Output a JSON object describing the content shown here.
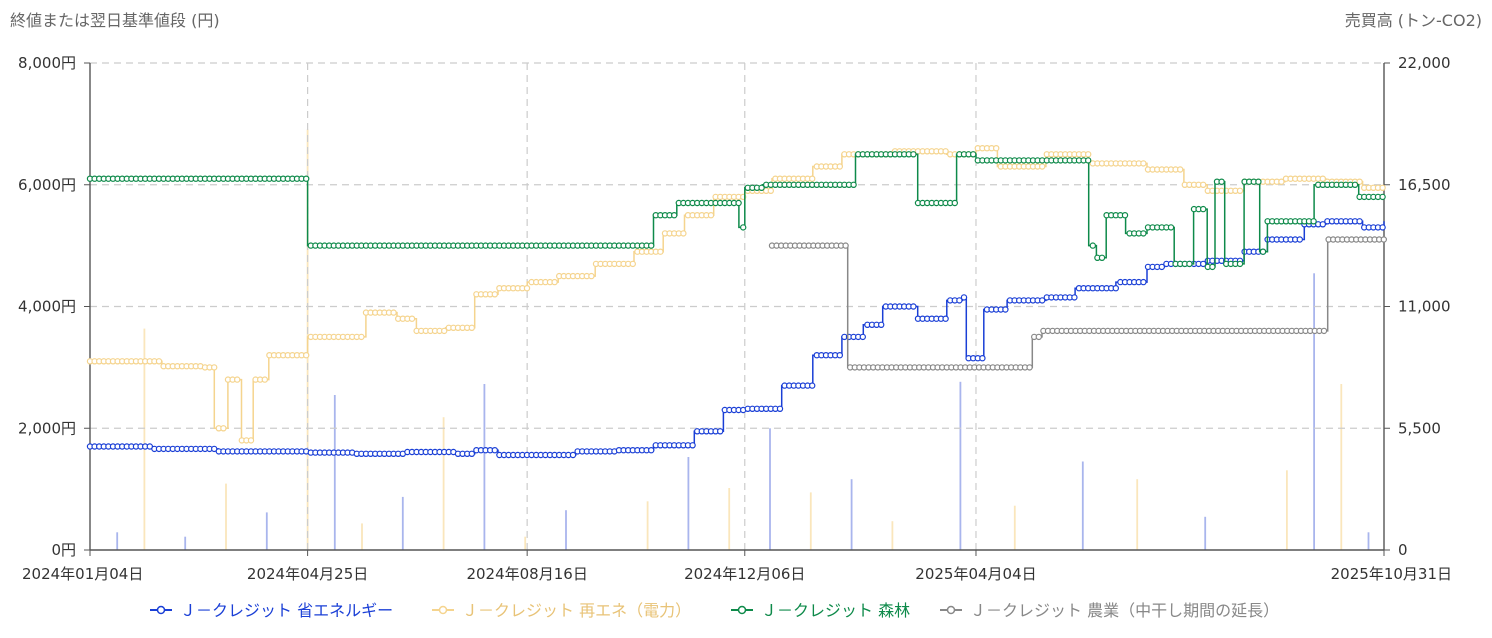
{
  "chart_data": {
    "type": "line",
    "y_left_title": "終値または翌日基準値段 (円)",
    "y_right_title": "売買高 (トン-CO2)",
    "y_left_ticks": [
      "0円",
      "2,000円",
      "4,000円",
      "6,000円",
      "8,000円"
    ],
    "y_right_ticks": [
      "0",
      "5,500",
      "11,000",
      "16,500",
      "22,000"
    ],
    "ylim_left": [
      0,
      8000
    ],
    "ylim_right": [
      0,
      22000
    ],
    "x_tick_labels": [
      "2024年01月04日",
      "2024年04月25日",
      "2024年08月16日",
      "2024年12月06日",
      "2025年04月04日",
      "2025年10月31日"
    ],
    "x_range": [
      "2024-01-04",
      "2025-10-31"
    ],
    "grid": true,
    "legend_position": "bottom",
    "series": [
      {
        "name": "Ｊ－クレジット 省エネルギー",
        "color": "#1a3fd6",
        "points": [
          [
            "2024-01-04",
            1700
          ],
          [
            "2024-02-05",
            1660
          ],
          [
            "2024-03-10",
            1620
          ],
          [
            "2024-04-25",
            1600
          ],
          [
            "2024-05-20",
            1580
          ],
          [
            "2024-06-15",
            1610
          ],
          [
            "2024-07-10",
            1580
          ],
          [
            "2024-07-20",
            1640
          ],
          [
            "2024-08-01",
            1560
          ],
          [
            "2024-08-16",
            1560
          ],
          [
            "2024-09-10",
            1620
          ],
          [
            "2024-10-01",
            1640
          ],
          [
            "2024-10-20",
            1720
          ],
          [
            "2024-11-10",
            1950
          ],
          [
            "2024-11-25",
            2300
          ],
          [
            "2024-12-06",
            2320
          ],
          [
            "2024-12-25",
            2700
          ],
          [
            "2025-01-10",
            3200
          ],
          [
            "2025-01-25",
            3500
          ],
          [
            "2025-02-05",
            3700
          ],
          [
            "2025-02-15",
            4000
          ],
          [
            "2025-03-05",
            3800
          ],
          [
            "2025-03-20",
            4100
          ],
          [
            "2025-03-28",
            4150
          ],
          [
            "2025-03-30",
            3150
          ],
          [
            "2025-04-04",
            3150
          ],
          [
            "2025-04-08",
            3950
          ],
          [
            "2025-04-20",
            4100
          ],
          [
            "2025-05-10",
            4150
          ],
          [
            "2025-05-25",
            4300
          ],
          [
            "2025-06-15",
            4400
          ],
          [
            "2025-07-01",
            4650
          ],
          [
            "2025-07-10",
            4700
          ],
          [
            "2025-08-01",
            4750
          ],
          [
            "2025-08-20",
            4900
          ],
          [
            "2025-09-01",
            5100
          ],
          [
            "2025-09-20",
            5350
          ],
          [
            "2025-10-01",
            5400
          ],
          [
            "2025-10-20",
            5300
          ],
          [
            "2025-10-31",
            5400
          ]
        ]
      },
      {
        "name": "Ｊ－クレジット 再エネ（電力）",
        "color": "#f5d48e",
        "points": [
          [
            "2024-01-04",
            3100
          ],
          [
            "2024-02-10",
            3020
          ],
          [
            "2024-03-01",
            3000
          ],
          [
            "2024-03-08",
            2000
          ],
          [
            "2024-03-15",
            2800
          ],
          [
            "2024-03-22",
            1800
          ],
          [
            "2024-03-28",
            2800
          ],
          [
            "2024-04-05",
            3200
          ],
          [
            "2024-04-25",
            3500
          ],
          [
            "2024-05-15",
            3500
          ],
          [
            "2024-05-25",
            3900
          ],
          [
            "2024-06-10",
            3800
          ],
          [
            "2024-06-20",
            3600
          ],
          [
            "2024-07-05",
            3650
          ],
          [
            "2024-07-20",
            4200
          ],
          [
            "2024-08-01",
            4300
          ],
          [
            "2024-08-16",
            4400
          ],
          [
            "2024-09-01",
            4500
          ],
          [
            "2024-09-20",
            4700
          ],
          [
            "2024-10-10",
            4900
          ],
          [
            "2024-10-25",
            5200
          ],
          [
            "2024-11-05",
            5500
          ],
          [
            "2024-11-20",
            5800
          ],
          [
            "2024-12-06",
            5900
          ],
          [
            "2024-12-20",
            6100
          ],
          [
            "2025-01-10",
            6300
          ],
          [
            "2025-01-25",
            6500
          ],
          [
            "2025-02-20",
            6550
          ],
          [
            "2025-03-20",
            6500
          ],
          [
            "2025-04-04",
            6600
          ],
          [
            "2025-04-15",
            6300
          ],
          [
            "2025-05-10",
            6500
          ],
          [
            "2025-06-01",
            6350
          ],
          [
            "2025-07-01",
            6250
          ],
          [
            "2025-07-20",
            6000
          ],
          [
            "2025-08-01",
            5900
          ],
          [
            "2025-08-20",
            6050
          ],
          [
            "2025-09-10",
            6100
          ],
          [
            "2025-10-01",
            6050
          ],
          [
            "2025-10-20",
            5950
          ],
          [
            "2025-10-31",
            5950
          ]
        ]
      },
      {
        "name": "Ｊ－クレジット 森林",
        "color": "#0e8a4a",
        "points": [
          [
            "2024-01-04",
            6100
          ],
          [
            "2024-04-24",
            6100
          ],
          [
            "2024-04-25",
            5000
          ],
          [
            "2024-10-15",
            5000
          ],
          [
            "2024-10-20",
            5500
          ],
          [
            "2024-11-01",
            5700
          ],
          [
            "2024-12-01",
            5700
          ],
          [
            "2024-12-03",
            5300
          ],
          [
            "2024-12-06",
            5950
          ],
          [
            "2024-12-15",
            6000
          ],
          [
            "2025-01-25",
            6000
          ],
          [
            "2025-02-01",
            6500
          ],
          [
            "2025-03-01",
            6500
          ],
          [
            "2025-03-05",
            5700
          ],
          [
            "2025-03-20",
            5700
          ],
          [
            "2025-03-25",
            6500
          ],
          [
            "2025-04-04",
            6400
          ],
          [
            "2025-05-20",
            6400
          ],
          [
            "2025-06-01",
            5000
          ],
          [
            "2025-06-05",
            4800
          ],
          [
            "2025-06-10",
            5500
          ],
          [
            "2025-06-20",
            5200
          ],
          [
            "2025-07-01",
            5300
          ],
          [
            "2025-07-15",
            4700
          ],
          [
            "2025-07-25",
            5600
          ],
          [
            "2025-08-01",
            4650
          ],
          [
            "2025-08-05",
            6050
          ],
          [
            "2025-08-10",
            4700
          ],
          [
            "2025-08-20",
            6050
          ],
          [
            "2025-08-28",
            4900
          ],
          [
            "2025-09-01",
            5400
          ],
          [
            "2025-09-20",
            5400
          ],
          [
            "2025-09-25",
            6000
          ],
          [
            "2025-10-15",
            6000
          ],
          [
            "2025-10-18",
            5800
          ],
          [
            "2025-10-31",
            5800
          ]
        ]
      },
      {
        "name": "Ｊ－クレジット 農業（中干し期間の延長）",
        "color": "#888888",
        "points": [
          [
            "2024-12-20",
            5000
          ],
          [
            "2025-01-25",
            5000
          ],
          [
            "2025-01-28",
            3000
          ],
          [
            "2025-05-01",
            3000
          ],
          [
            "2025-05-03",
            3500
          ],
          [
            "2025-05-08",
            3600
          ],
          [
            "2025-09-30",
            3600
          ],
          [
            "2025-10-02",
            5100
          ],
          [
            "2025-10-31",
            5100
          ]
        ]
      }
    ],
    "volume_bars": {
      "axis": "right",
      "colors": [
        "#9aa8ea",
        "#f9e2b0"
      ],
      "points": [
        [
          "2024-01-18",
          800
        ],
        [
          "2024-02-01",
          10000
        ],
        [
          "2024-02-22",
          600
        ],
        [
          "2024-03-14",
          3000
        ],
        [
          "2024-04-04",
          1700
        ],
        [
          "2024-04-25",
          19000
        ],
        [
          "2024-05-09",
          7000
        ],
        [
          "2024-05-23",
          1200
        ],
        [
          "2024-06-13",
          2400
        ],
        [
          "2024-07-04",
          6000
        ],
        [
          "2024-07-25",
          7500
        ],
        [
          "2024-08-15",
          600
        ],
        [
          "2024-09-05",
          1800
        ],
        [
          "2024-10-17",
          2200
        ],
        [
          "2024-11-07",
          4200
        ],
        [
          "2024-11-28",
          2800
        ],
        [
          "2024-12-19",
          5500
        ],
        [
          "2025-01-09",
          2600
        ],
        [
          "2025-01-30",
          3200
        ],
        [
          "2025-02-20",
          1300
        ],
        [
          "2025-03-27",
          7600
        ],
        [
          "2025-04-24",
          2000
        ],
        [
          "2025-05-29",
          4000
        ],
        [
          "2025-06-26",
          3200
        ],
        [
          "2025-07-31",
          1500
        ],
        [
          "2025-09-11",
          3600
        ],
        [
          "2025-09-25",
          12500
        ],
        [
          "2025-10-09",
          7500
        ],
        [
          "2025-10-23",
          800
        ]
      ]
    }
  }
}
